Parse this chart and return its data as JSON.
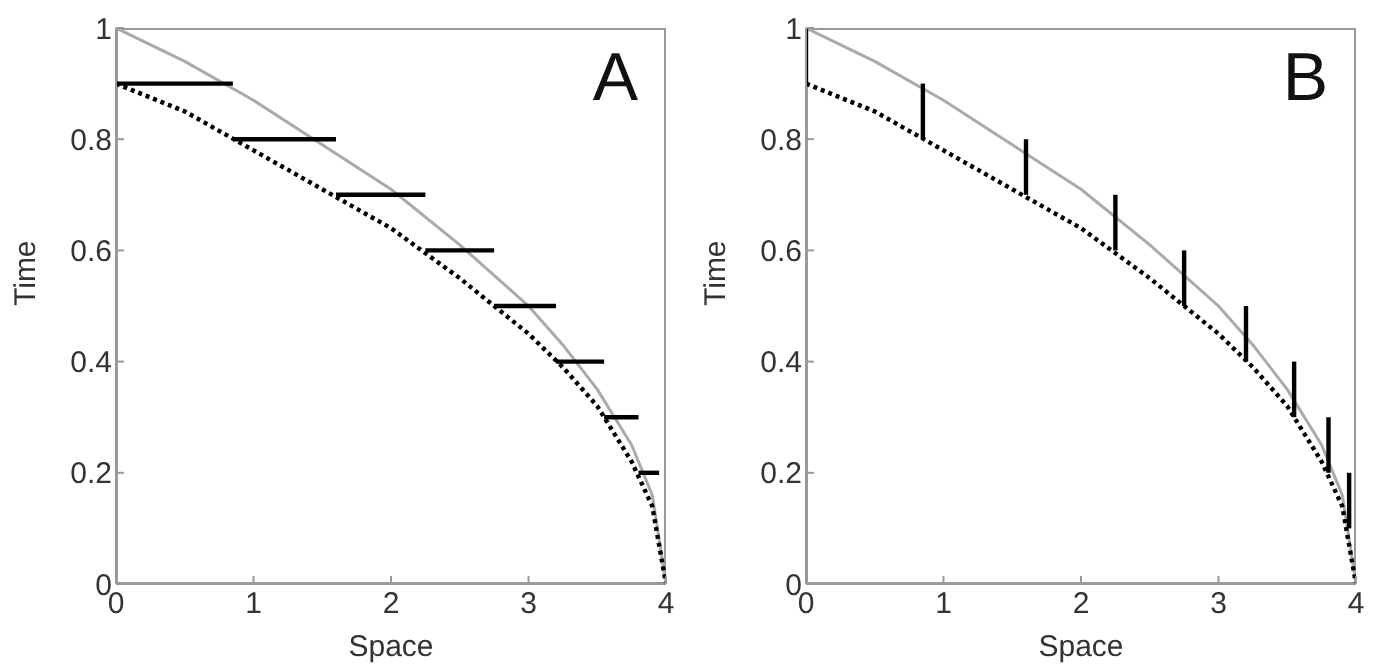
{
  "chart_data": [
    {
      "type": "line",
      "xlabel": "Space",
      "ylabel": "Time",
      "annotations": [
        "A"
      ],
      "xlim": [
        0,
        4
      ],
      "ylim": [
        0,
        1
      ],
      "xticks": [
        0,
        1,
        2,
        3,
        4
      ],
      "yticks": [
        0,
        0.2,
        0.4,
        0.6,
        0.8,
        1
      ],
      "grid": false,
      "legend": false,
      "marker": "none",
      "series": [
        {
          "color": "#aaaaaa",
          "line_style": "solid",
          "x": [
            0,
            0.5,
            1,
            1.5,
            2,
            2.5,
            3,
            3.25,
            3.5,
            3.75,
            3.9,
            4
          ],
          "values": [
            1,
            0.94,
            0.87,
            0.79,
            0.71,
            0.61,
            0.5,
            0.43,
            0.35,
            0.25,
            0.16,
            0
          ]
        },
        {
          "color": "#000000",
          "line_style": "dotted",
          "x": [
            0,
            0.5,
            1,
            1.5,
            2,
            2.5,
            3,
            3.25,
            3.5,
            3.75,
            3.9,
            4
          ],
          "values": [
            0.9,
            0.85,
            0.78,
            0.71,
            0.64,
            0.55,
            0.45,
            0.39,
            0.32,
            0.22,
            0.14,
            0
          ]
        },
        {
          "color": "#000000",
          "line_style": "solid",
          "x": [
            0,
            0.85
          ],
          "values": [
            0.9,
            0.9
          ]
        },
        {
          "color": "#000000",
          "line_style": "solid",
          "x": [
            0.85,
            1.6
          ],
          "values": [
            0.8,
            0.8
          ]
        },
        {
          "color": "#000000",
          "line_style": "solid",
          "x": [
            1.6,
            2.25
          ],
          "values": [
            0.7,
            0.7
          ]
        },
        {
          "color": "#000000",
          "line_style": "solid",
          "x": [
            2.25,
            2.75
          ],
          "values": [
            0.6,
            0.6
          ]
        },
        {
          "color": "#000000",
          "line_style": "solid",
          "x": [
            2.75,
            3.2
          ],
          "values": [
            0.5,
            0.5
          ]
        },
        {
          "color": "#000000",
          "line_style": "solid",
          "x": [
            3.2,
            3.55
          ],
          "values": [
            0.4,
            0.4
          ]
        },
        {
          "color": "#000000",
          "line_style": "solid",
          "x": [
            3.55,
            3.8
          ],
          "values": [
            0.3,
            0.3
          ]
        },
        {
          "color": "#000000",
          "line_style": "solid",
          "x": [
            3.8,
            3.95
          ],
          "values": [
            0.2,
            0.2
          ]
        }
      ]
    },
    {
      "type": "line",
      "xlabel": "Space",
      "ylabel": "Time",
      "annotations": [
        "B"
      ],
      "xlim": [
        0,
        4
      ],
      "ylim": [
        0,
        1
      ],
      "xticks": [
        0,
        1,
        2,
        3,
        4
      ],
      "yticks": [
        0,
        0.2,
        0.4,
        0.6,
        0.8,
        1
      ],
      "grid": false,
      "legend": false,
      "marker": "none",
      "series": [
        {
          "color": "#aaaaaa",
          "line_style": "solid",
          "x": [
            0,
            0.5,
            1,
            1.5,
            2,
            2.5,
            3,
            3.25,
            3.5,
            3.75,
            3.9,
            4
          ],
          "values": [
            1,
            0.94,
            0.87,
            0.79,
            0.71,
            0.61,
            0.5,
            0.43,
            0.35,
            0.25,
            0.16,
            0
          ]
        },
        {
          "color": "#000000",
          "line_style": "dotted",
          "x": [
            0,
            0.5,
            1,
            1.5,
            2,
            2.5,
            3,
            3.25,
            3.5,
            3.75,
            3.9,
            4
          ],
          "values": [
            0.9,
            0.85,
            0.78,
            0.71,
            0.64,
            0.55,
            0.45,
            0.39,
            0.32,
            0.22,
            0.14,
            0
          ]
        },
        {
          "color": "#000000",
          "line_style": "solid",
          "x": [
            0,
            0
          ],
          "values": [
            0.9,
            1
          ]
        },
        {
          "color": "#000000",
          "line_style": "solid",
          "x": [
            0.85,
            0.85
          ],
          "values": [
            0.8,
            0.9
          ]
        },
        {
          "color": "#000000",
          "line_style": "solid",
          "x": [
            1.6,
            1.6
          ],
          "values": [
            0.7,
            0.8
          ]
        },
        {
          "color": "#000000",
          "line_style": "solid",
          "x": [
            2.25,
            2.25
          ],
          "values": [
            0.6,
            0.7
          ]
        },
        {
          "color": "#000000",
          "line_style": "solid",
          "x": [
            2.75,
            2.75
          ],
          "values": [
            0.5,
            0.6
          ]
        },
        {
          "color": "#000000",
          "line_style": "solid",
          "x": [
            3.2,
            3.2
          ],
          "values": [
            0.4,
            0.5
          ]
        },
        {
          "color": "#000000",
          "line_style": "solid",
          "x": [
            3.55,
            3.55
          ],
          "values": [
            0.3,
            0.4
          ]
        },
        {
          "color": "#000000",
          "line_style": "solid",
          "x": [
            3.8,
            3.8
          ],
          "values": [
            0.2,
            0.3
          ]
        },
        {
          "color": "#000000",
          "line_style": "solid",
          "x": [
            3.95,
            3.95
          ],
          "values": [
            0.1,
            0.2
          ]
        }
      ]
    }
  ]
}
